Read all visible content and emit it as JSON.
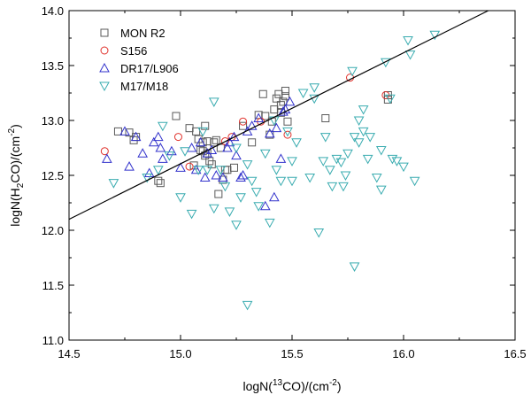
{
  "chart_data": {
    "type": "scatter",
    "title": "",
    "xlabel": {
      "pre": "logN(",
      "sup": "13",
      "post": "CO)/(cm",
      "sup2": "-2",
      "end": ")"
    },
    "ylabel": {
      "pre": "logN(H",
      "sub": "2",
      "post": "CO)/(cm",
      "sup": "-2",
      "end": ")"
    },
    "xlim": [
      14.5,
      16.5
    ],
    "ylim": [
      11.0,
      14.0
    ],
    "xticks": [
      "14.5",
      "15.0",
      "15.5",
      "16.0",
      "16.5"
    ],
    "yticks": [
      "11.0",
      "11.5",
      "12.0",
      "12.5",
      "13.0",
      "13.5",
      "14.0"
    ],
    "legend_position": "top-left",
    "fit_line": {
      "x": [
        14.5,
        16.38
      ],
      "y": [
        12.1,
        14.0
      ]
    },
    "series": [
      {
        "name": "MON R2",
        "marker": "square",
        "color": "#5a5a5a",
        "x": [
          14.72,
          14.77,
          14.79,
          14.8,
          14.9,
          14.91,
          14.98,
          15.04,
          15.07,
          15.08,
          15.09,
          15.1,
          15.1,
          15.11,
          15.12,
          15.12,
          15.13,
          15.14,
          15.15,
          15.16,
          15.17,
          15.19,
          15.2,
          15.21,
          15.24,
          15.28,
          15.32,
          15.35,
          15.37,
          15.38,
          15.4,
          15.41,
          15.42,
          15.43,
          15.44,
          15.45,
          15.46,
          15.47,
          15.48,
          15.65,
          15.93,
          15.93,
          15.47,
          15.45,
          15.18,
          15.11,
          15.06
        ],
        "y": [
          12.9,
          12.89,
          12.82,
          12.85,
          12.45,
          12.43,
          13.04,
          12.93,
          12.9,
          12.83,
          12.73,
          12.72,
          12.8,
          12.95,
          12.81,
          12.7,
          12.63,
          12.6,
          12.8,
          12.82,
          12.33,
          12.46,
          12.55,
          12.55,
          12.57,
          12.95,
          12.8,
          13.05,
          13.24,
          13.04,
          12.87,
          12.99,
          13.1,
          13.2,
          13.24,
          13.07,
          13.17,
          13.22,
          12.99,
          13.02,
          13.23,
          13.19,
          13.27,
          13.14,
          12.75,
          12.68,
          12.59
        ]
      },
      {
        "name": "S156",
        "marker": "circle",
        "color": "#e0302a",
        "x": [
          14.66,
          14.99,
          15.04,
          15.2,
          15.23,
          15.28,
          15.36,
          15.48,
          15.76,
          15.92
        ],
        "y": [
          12.72,
          12.85,
          12.58,
          12.81,
          12.85,
          12.99,
          12.99,
          12.87,
          13.39,
          13.23
        ]
      },
      {
        "name": "DR17/L906",
        "marker": "triangle-up",
        "color": "#3333cc",
        "x": [
          14.67,
          14.75,
          14.77,
          14.8,
          14.83,
          14.86,
          14.88,
          14.9,
          14.91,
          14.92,
          14.96,
          15.0,
          15.05,
          15.07,
          15.09,
          15.11,
          15.12,
          15.14,
          15.16,
          15.19,
          15.21,
          15.22,
          15.24,
          15.25,
          15.27,
          15.28,
          15.3,
          15.32,
          15.35,
          15.38,
          15.4,
          15.42,
          15.43,
          15.45,
          15.46,
          15.47,
          15.49
        ],
        "y": [
          12.65,
          12.9,
          12.58,
          12.85,
          12.7,
          12.52,
          12.8,
          12.85,
          12.75,
          12.65,
          12.72,
          12.57,
          12.75,
          12.55,
          12.8,
          12.48,
          12.7,
          12.73,
          12.5,
          12.48,
          12.75,
          12.8,
          12.85,
          12.68,
          12.48,
          12.5,
          12.9,
          12.95,
          13.02,
          12.22,
          12.88,
          12.3,
          12.93,
          12.65,
          13.08,
          13.1,
          13.17
        ]
      },
      {
        "name": "M17/M18",
        "marker": "triangle-down",
        "color": "#3aacb0",
        "x": [
          14.7,
          14.85,
          14.9,
          14.92,
          14.95,
          15.0,
          15.02,
          15.05,
          15.08,
          15.1,
          15.15,
          15.15,
          15.18,
          15.2,
          15.22,
          15.25,
          15.25,
          15.27,
          15.3,
          15.3,
          15.32,
          15.35,
          15.38,
          15.4,
          15.42,
          15.43,
          15.45,
          15.48,
          15.5,
          15.5,
          15.52,
          15.55,
          15.58,
          15.6,
          15.62,
          15.64,
          15.65,
          15.67,
          15.68,
          15.7,
          15.72,
          15.73,
          15.75,
          15.77,
          15.78,
          15.8,
          15.8,
          15.82,
          15.82,
          15.84,
          15.85,
          15.88,
          15.9,
          15.9,
          15.92,
          15.94,
          15.95,
          15.97,
          16.0,
          16.02,
          16.03,
          16.05,
          16.14,
          15.74,
          15.78,
          15.6,
          15.12,
          15.34
        ],
        "y": [
          12.43,
          12.48,
          12.55,
          12.95,
          12.68,
          12.3,
          12.72,
          12.15,
          12.55,
          12.9,
          12.2,
          13.17,
          12.55,
          12.4,
          12.17,
          12.05,
          12.75,
          12.3,
          12.6,
          11.32,
          12.45,
          12.22,
          12.7,
          12.07,
          13.0,
          12.55,
          12.45,
          12.9,
          12.63,
          12.45,
          12.8,
          13.25,
          12.48,
          13.2,
          11.98,
          12.63,
          12.85,
          12.55,
          12.4,
          12.65,
          12.62,
          12.4,
          12.7,
          13.45,
          11.67,
          13.0,
          12.8,
          13.1,
          12.9,
          12.65,
          12.85,
          12.48,
          12.73,
          12.37,
          13.53,
          13.2,
          12.65,
          12.63,
          12.58,
          13.73,
          13.6,
          12.45,
          13.78,
          12.5,
          12.85,
          13.3,
          12.55,
          12.35
        ]
      }
    ]
  }
}
